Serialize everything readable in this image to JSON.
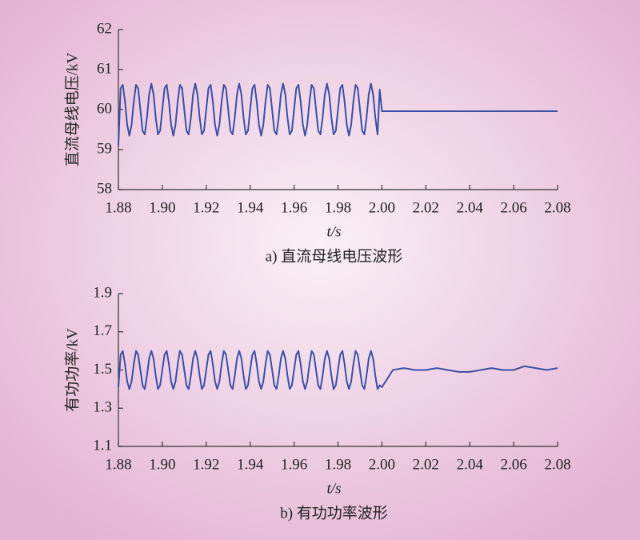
{
  "chart_data": [
    {
      "type": "line",
      "caption": "a) 直流母线电压波形",
      "ylabel": "直流母线电压/kV",
      "xlabel": "t/s",
      "xlim": [
        1.88,
        2.08
      ],
      "ylim": [
        58,
        62
      ],
      "xticks": [
        1.88,
        {
          "value": 1.9,
          "label": "1.90"
        },
        1.92,
        1.94,
        1.96,
        1.98,
        {
          "value": 2,
          "label": "2.00"
        },
        2.02,
        2.04,
        2.06,
        2.08
      ],
      "yticks": [
        58,
        59,
        60,
        61,
        62
      ],
      "series": [
        {
          "color": "#3a4fa6",
          "x": [
            1.88,
            1.881,
            1.882,
            1.883,
            1.884,
            1.885,
            1.886,
            1.887,
            1.888,
            1.889,
            1.89,
            1.891,
            1.892,
            1.893,
            1.894,
            1.895,
            1.896,
            1.897,
            1.898,
            1.899,
            1.9,
            1.901,
            1.902,
            1.903,
            1.904,
            1.905,
            1.906,
            1.907,
            1.908,
            1.909,
            1.91,
            1.911,
            1.912,
            1.913,
            1.914,
            1.915,
            1.916,
            1.917,
            1.918,
            1.919,
            1.92,
            1.921,
            1.922,
            1.923,
            1.924,
            1.925,
            1.926,
            1.927,
            1.928,
            1.929,
            1.93,
            1.931,
            1.932,
            1.933,
            1.934,
            1.935,
            1.936,
            1.937,
            1.938,
            1.939,
            1.94,
            1.941,
            1.942,
            1.943,
            1.944,
            1.945,
            1.946,
            1.947,
            1.948,
            1.949,
            1.95,
            1.951,
            1.952,
            1.953,
            1.954,
            1.955,
            1.956,
            1.957,
            1.958,
            1.959,
            1.96,
            1.961,
            1.962,
            1.963,
            1.964,
            1.965,
            1.966,
            1.967,
            1.968,
            1.969,
            1.97,
            1.971,
            1.972,
            1.973,
            1.974,
            1.975,
            1.976,
            1.977,
            1.978,
            1.979,
            1.98,
            1.981,
            1.982,
            1.983,
            1.984,
            1.985,
            1.986,
            1.987,
            1.988,
            1.989,
            1.99,
            1.991,
            1.992,
            1.993,
            1.994,
            1.995,
            1.996,
            1.997,
            1.998,
            1.999,
            2.0,
            2.01,
            2.02,
            2.03,
            2.04,
            2.05,
            2.06,
            2.07,
            2.08
          ],
          "values": [
            59.1,
            60.53,
            60.62,
            60.2,
            59.62,
            59.35,
            59.62,
            60.2,
            60.62,
            60.53,
            60.0,
            59.47,
            59.38,
            59.8,
            60.38,
            60.65,
            60.38,
            59.8,
            59.38,
            59.47,
            60.0,
            60.53,
            60.62,
            60.2,
            59.62,
            59.35,
            59.62,
            60.2,
            60.62,
            60.53,
            60.0,
            59.47,
            59.38,
            59.8,
            60.38,
            60.65,
            60.38,
            59.8,
            59.38,
            59.47,
            60.0,
            60.53,
            60.62,
            60.2,
            59.62,
            59.35,
            59.62,
            60.2,
            60.62,
            60.53,
            60.0,
            59.47,
            59.38,
            59.8,
            60.38,
            60.65,
            60.38,
            59.8,
            59.38,
            59.47,
            60.0,
            60.53,
            60.62,
            60.2,
            59.62,
            59.35,
            59.62,
            60.2,
            60.62,
            60.53,
            60.0,
            59.47,
            59.38,
            59.8,
            60.38,
            60.65,
            60.38,
            59.8,
            59.38,
            59.47,
            60.0,
            60.53,
            60.62,
            60.2,
            59.62,
            59.35,
            59.62,
            60.2,
            60.62,
            60.53,
            60.0,
            59.47,
            59.38,
            59.8,
            60.38,
            60.65,
            60.38,
            59.8,
            59.38,
            59.47,
            60.0,
            60.53,
            60.62,
            60.2,
            59.62,
            59.35,
            59.62,
            60.2,
            60.62,
            60.53,
            60.0,
            59.47,
            59.38,
            59.8,
            60.38,
            60.65,
            60.38,
            59.8,
            59.38,
            60.5,
            59.96,
            59.96,
            59.96,
            59.96,
            59.96,
            59.96,
            59.96,
            59.96,
            59.96
          ]
        }
      ]
    },
    {
      "type": "line",
      "caption": "b) 有功功率波形",
      "ylabel": "有功功率/kV",
      "xlabel": "t/s",
      "xlim": [
        1.88,
        2.08
      ],
      "ylim": [
        1.1,
        1.9
      ],
      "xticks": [
        1.88,
        {
          "value": 1.9,
          "label": "1.90"
        },
        1.92,
        1.94,
        1.96,
        1.98,
        {
          "value": 2,
          "label": "2.00"
        },
        2.02,
        2.04,
        2.06,
        2.08
      ],
      "yticks": [
        1.1,
        1.3,
        1.5,
        1.7,
        1.9
      ],
      "series": [
        {
          "color": "#3a4fa6",
          "x": [
            1.88,
            1.881,
            1.882,
            1.883,
            1.884,
            1.885,
            1.886,
            1.887,
            1.888,
            1.889,
            1.89,
            1.891,
            1.892,
            1.893,
            1.894,
            1.895,
            1.896,
            1.897,
            1.898,
            1.899,
            1.9,
            1.901,
            1.902,
            1.903,
            1.904,
            1.905,
            1.906,
            1.907,
            1.908,
            1.909,
            1.91,
            1.911,
            1.912,
            1.913,
            1.914,
            1.915,
            1.916,
            1.917,
            1.918,
            1.919,
            1.92,
            1.921,
            1.922,
            1.923,
            1.924,
            1.925,
            1.926,
            1.927,
            1.928,
            1.929,
            1.93,
            1.931,
            1.932,
            1.933,
            1.934,
            1.935,
            1.936,
            1.937,
            1.938,
            1.939,
            1.94,
            1.941,
            1.942,
            1.943,
            1.944,
            1.945,
            1.946,
            1.947,
            1.948,
            1.949,
            1.95,
            1.951,
            1.952,
            1.953,
            1.954,
            1.955,
            1.956,
            1.957,
            1.958,
            1.959,
            1.96,
            1.961,
            1.962,
            1.963,
            1.964,
            1.965,
            1.966,
            1.967,
            1.968,
            1.969,
            1.97,
            1.971,
            1.972,
            1.973,
            1.974,
            1.975,
            1.976,
            1.977,
            1.978,
            1.979,
            1.98,
            1.981,
            1.982,
            1.983,
            1.984,
            1.985,
            1.986,
            1.987,
            1.988,
            1.989,
            1.99,
            1.991,
            1.992,
            1.993,
            1.994,
            1.995,
            1.996,
            1.997,
            1.998,
            1.999,
            2.0,
            2.005,
            2.01,
            2.015,
            2.02,
            2.025,
            2.03,
            2.035,
            2.04,
            2.045,
            2.05,
            2.055,
            2.06,
            2.065,
            2.07,
            2.075,
            2.08
          ],
          "values": [
            1.41,
            1.58,
            1.6,
            1.53,
            1.44,
            1.4,
            1.44,
            1.53,
            1.6,
            1.58,
            1.5,
            1.42,
            1.4,
            1.47,
            1.56,
            1.6,
            1.56,
            1.47,
            1.4,
            1.42,
            1.5,
            1.58,
            1.6,
            1.53,
            1.44,
            1.4,
            1.44,
            1.53,
            1.6,
            1.58,
            1.5,
            1.42,
            1.4,
            1.47,
            1.56,
            1.6,
            1.56,
            1.47,
            1.4,
            1.42,
            1.5,
            1.58,
            1.6,
            1.53,
            1.44,
            1.4,
            1.44,
            1.53,
            1.6,
            1.58,
            1.5,
            1.42,
            1.4,
            1.47,
            1.56,
            1.6,
            1.56,
            1.47,
            1.4,
            1.42,
            1.5,
            1.58,
            1.6,
            1.53,
            1.44,
            1.4,
            1.44,
            1.53,
            1.6,
            1.58,
            1.5,
            1.42,
            1.4,
            1.47,
            1.56,
            1.6,
            1.56,
            1.47,
            1.4,
            1.42,
            1.5,
            1.58,
            1.6,
            1.53,
            1.44,
            1.4,
            1.44,
            1.53,
            1.6,
            1.58,
            1.5,
            1.42,
            1.4,
            1.47,
            1.56,
            1.6,
            1.56,
            1.47,
            1.4,
            1.42,
            1.5,
            1.58,
            1.6,
            1.53,
            1.44,
            1.4,
            1.44,
            1.53,
            1.6,
            1.58,
            1.5,
            1.42,
            1.4,
            1.47,
            1.56,
            1.6,
            1.56,
            1.47,
            1.4,
            1.42,
            1.41,
            1.5,
            1.51,
            1.5,
            1.5,
            1.51,
            1.5,
            1.49,
            1.49,
            1.5,
            1.51,
            1.5,
            1.5,
            1.52,
            1.51,
            1.5,
            1.51
          ]
        }
      ]
    }
  ]
}
